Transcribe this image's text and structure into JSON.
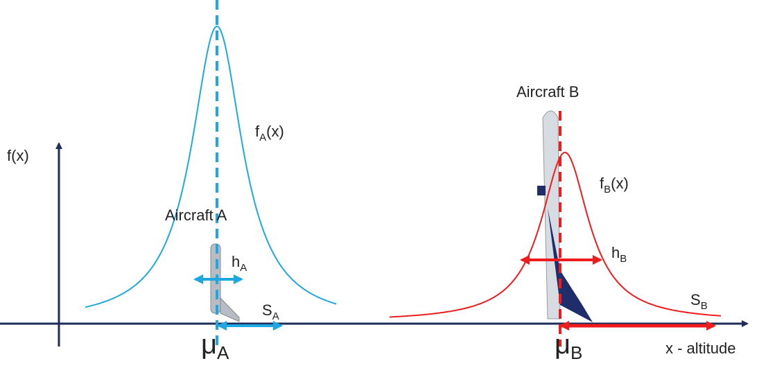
{
  "axes": {
    "y_label": "f(x)",
    "x_label": "x - altitude"
  },
  "aircraft_a": {
    "name": "Aircraft A",
    "pdf": {
      "base": "f",
      "sub": "A",
      "tail": "(x)"
    },
    "height": {
      "base": "h",
      "sub": "A"
    },
    "spread": {
      "base": "S",
      "sub": "A"
    },
    "mean": {
      "base": "μ",
      "sub": "A"
    }
  },
  "aircraft_b": {
    "name": "Aircraft B",
    "pdf": {
      "base": "f",
      "sub": "B",
      "tail": "(x)"
    },
    "height": {
      "base": "h",
      "sub": "B"
    },
    "spread": {
      "base": "S",
      "sub": "B"
    },
    "mean": {
      "base": "μ",
      "sub": "B"
    }
  }
}
